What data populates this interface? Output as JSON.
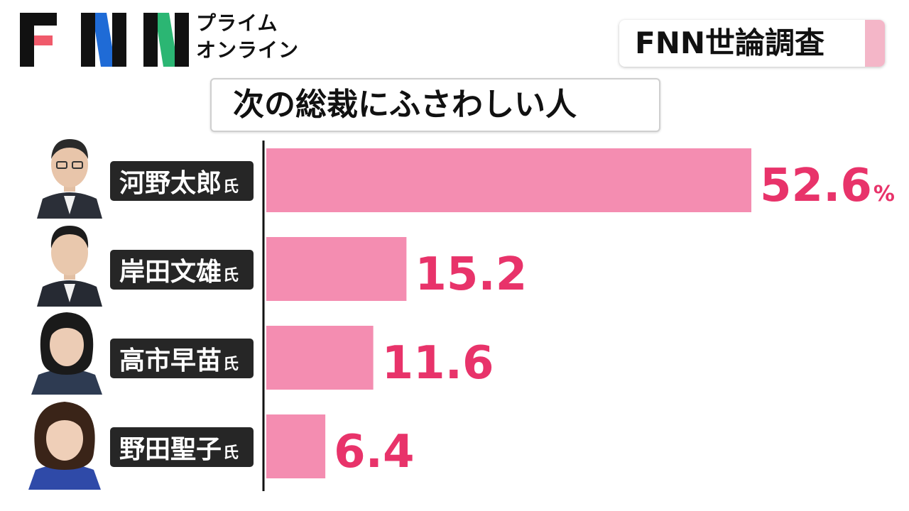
{
  "logo": {
    "letters": [
      "F",
      "N",
      "N"
    ],
    "sub_line1": "プライム",
    "sub_line2": "オンライン"
  },
  "survey_label": "FNN世論調査",
  "chart_data": {
    "type": "bar",
    "orientation": "horizontal",
    "title": "次の総裁にふさわしい人",
    "categories": [
      "河野太郎氏",
      "岸田文雄氏",
      "高市早苗氏",
      "野田聖子氏"
    ],
    "names": [
      "河野太郎",
      "岸田文雄",
      "高市早苗",
      "野田聖子"
    ],
    "honorific": "氏",
    "values": [
      52.6,
      15.2,
      11.6,
      6.4
    ],
    "value_labels": [
      "52.6",
      "15.2",
      "11.6",
      "6.4"
    ],
    "unit": "%",
    "xlim": [
      0,
      60
    ],
    "grid": false,
    "legend": "none"
  },
  "colors": {
    "bar": "#f48db1",
    "value_text": "#e8336a",
    "label_bg": "#262626",
    "label_text": "#ffffff",
    "axis": "#111111"
  }
}
